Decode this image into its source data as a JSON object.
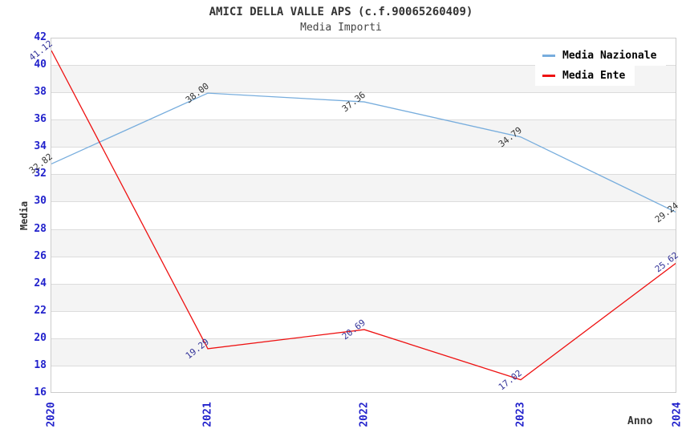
{
  "header": {
    "title": "AMICI DELLA VALLE APS (c.f.90065260409)",
    "subtitle": "Media Importi"
  },
  "chart_data": {
    "type": "line",
    "x": [
      "2020",
      "2021",
      "2022",
      "2023",
      "2024"
    ],
    "series": [
      {
        "name": "Media Nazionale",
        "color": "#77ADDD",
        "label_color": "#333333",
        "values": [
          32.82,
          38.0,
          37.36,
          34.79,
          29.24
        ]
      },
      {
        "name": "Media Ente",
        "color": "#EE1111",
        "label_color": "#333399",
        "values": [
          41.12,
          19.29,
          20.69,
          17.02,
          25.62
        ]
      }
    ],
    "title": "AMICI DELLA VALLE APS (c.f.90065260409)",
    "subtitle": "Media Importi",
    "xlabel": "Anno",
    "ylabel": "Media",
    "ylim": [
      16,
      42
    ],
    "ytick_step": 2,
    "grid": "horizontal-bands",
    "legend_position": "top-right",
    "colors": {
      "tick_label": "#2222CC",
      "band": "#F4F4F4",
      "gridline": "#DCDCDC",
      "frame": "#CCCCCC",
      "title": "#333333"
    }
  }
}
